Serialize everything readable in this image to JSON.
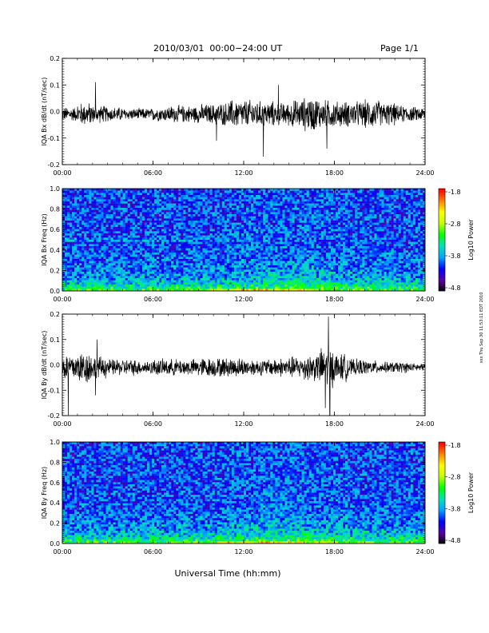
{
  "header": {
    "title": "2010/03/01  00:00−24:00 UT",
    "page": "Page 1/1"
  },
  "xaxis": {
    "ticks": [
      "00:00",
      "06:00",
      "12:00",
      "18:00",
      "24:00"
    ],
    "label": "Universal Time (hh:mm)"
  },
  "side_stamp": "xxx Thu Sep 30 11:53:11 EDT 2010",
  "colors": {
    "trace": "#000000",
    "colormap": [
      "#000000",
      "#5a00a0",
      "#0000ff",
      "#00a0ff",
      "#00e0c0",
      "#00ff00",
      "#c0ff00",
      "#ffff00",
      "#ff8000",
      "#ff0000"
    ]
  },
  "chart_data": [
    {
      "type": "line",
      "id": "bx_dbdt",
      "ylabel": "IQA Bx dB/dt (nT/sec)",
      "ylim": [
        -0.2,
        0.2
      ],
      "yticks": [
        "0.2",
        "0.1",
        "0.0",
        "-0.1",
        "-0.2"
      ],
      "xlim": [
        0,
        24
      ],
      "amplitude_envelope": [
        0.025,
        0.04,
        0.03,
        0.025,
        0.02,
        0.02,
        0.025,
        0.03,
        0.03,
        0.035,
        0.04,
        0.05,
        0.05,
        0.045,
        0.04,
        0.05,
        0.06,
        0.05,
        0.045,
        0.045,
        0.05,
        0.04,
        0.03,
        0.025
      ],
      "spikes": [
        {
          "x": 2.2,
          "y": 0.11
        },
        {
          "x": 13.3,
          "y": -0.17
        },
        {
          "x": 14.3,
          "y": 0.1
        },
        {
          "x": 17.5,
          "y": -0.14
        },
        {
          "x": 10.2,
          "y": -0.11
        }
      ]
    },
    {
      "type": "heatmap",
      "id": "bx_spectrogram",
      "ylabel": "IQA Bx Freq (Hz)",
      "ylim": [
        0,
        1
      ],
      "yticks": [
        "1.0",
        "0.8",
        "0.6",
        "0.4",
        "0.2",
        "0.0"
      ],
      "xlim": [
        0,
        24
      ],
      "colorbar": {
        "label": "Log10 Power",
        "range": [
          -4.8,
          -1.8
        ],
        "ticks": [
          "-1.8",
          "-2.8",
          "-3.8",
          "-4.8"
        ]
      }
    },
    {
      "type": "line",
      "id": "by_dbdt",
      "ylabel": "IQA By dB/dt (nT/sec)",
      "ylim": [
        -0.2,
        0.2
      ],
      "yticks": [
        "0.2",
        "0.1",
        "0.0",
        "-0.1",
        "-0.2"
      ],
      "xlim": [
        0,
        24
      ],
      "amplitude_envelope": [
        0.05,
        0.06,
        0.04,
        0.03,
        0.03,
        0.025,
        0.03,
        0.03,
        0.03,
        0.035,
        0.035,
        0.035,
        0.03,
        0.03,
        0.035,
        0.04,
        0.05,
        0.07,
        0.05,
        0.03,
        0.025,
        0.02,
        0.02,
        0.015
      ],
      "spikes": [
        {
          "x": 0.4,
          "y": -0.21
        },
        {
          "x": 2.3,
          "y": 0.1
        },
        {
          "x": 2.2,
          "y": -0.12
        },
        {
          "x": 17.6,
          "y": 0.19
        },
        {
          "x": 17.7,
          "y": -0.2
        },
        {
          "x": 17.4,
          "y": -0.17
        }
      ]
    },
    {
      "type": "heatmap",
      "id": "by_spectrogram",
      "ylabel": "IQA By Freq (Hz)",
      "ylim": [
        0,
        1
      ],
      "yticks": [
        "1.0",
        "0.8",
        "0.6",
        "0.4",
        "0.2",
        "0.0"
      ],
      "xlim": [
        0,
        24
      ],
      "colorbar": {
        "label": "Log10 Power",
        "range": [
          -4.8,
          -1.8
        ],
        "ticks": [
          "-1.8",
          "-2.8",
          "-3.8",
          "-4.8"
        ]
      }
    }
  ]
}
